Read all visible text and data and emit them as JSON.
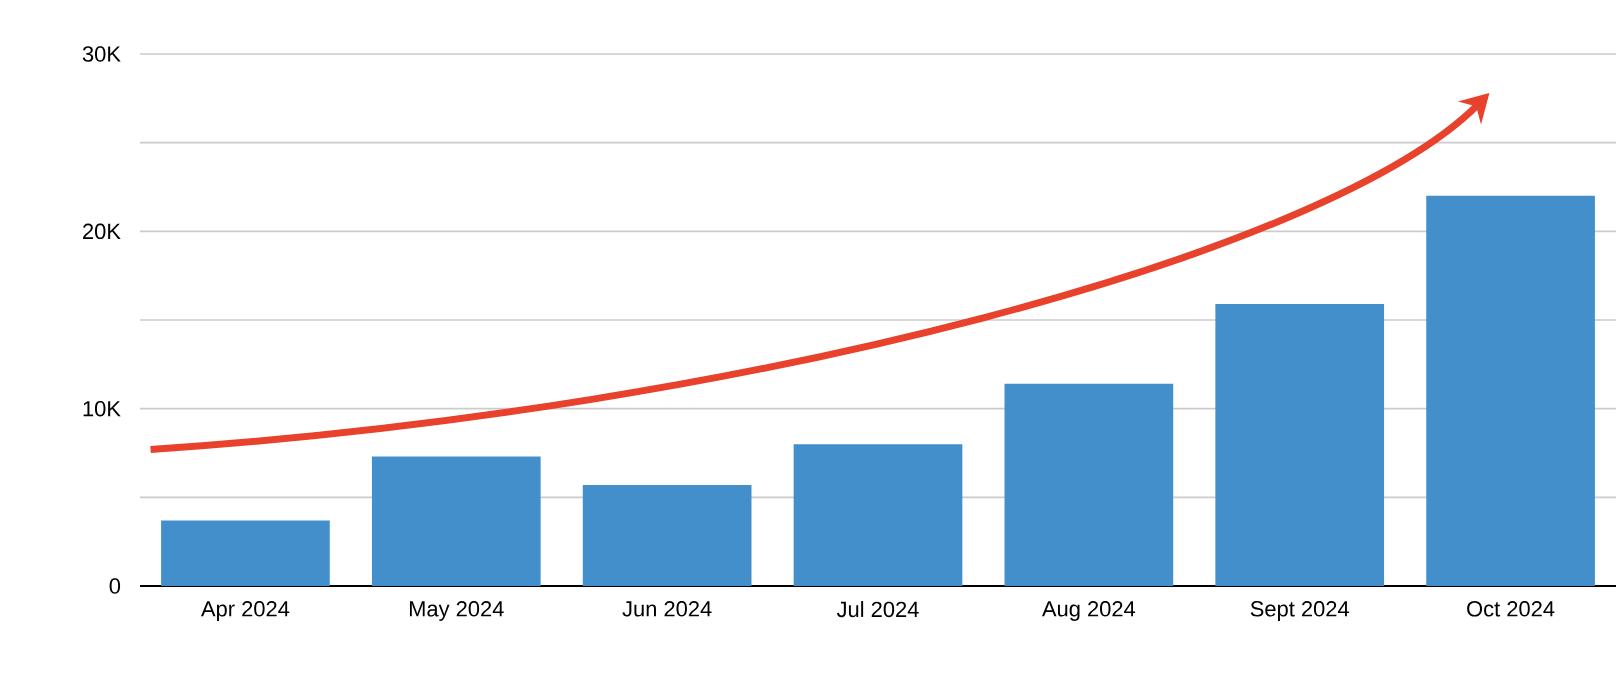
{
  "chart_data": {
    "type": "bar",
    "categories": [
      "Apr 2024",
      "May 2024",
      "Jun 2024",
      "Jul 2024",
      "Aug 2024",
      "Sept 2024",
      "Oct 2024"
    ],
    "values": [
      3700,
      7300,
      5700,
      8000,
      11400,
      15900,
      22000
    ],
    "color": "#428fcc",
    "ylim": [
      0,
      30000
    ],
    "yticks": [
      0,
      {
        "value": 5000,
        "label": null
      },
      {
        "value": 10000,
        "label": "10K"
      },
      {
        "value": 15000,
        "label": null
      },
      {
        "value": 20000,
        "label": "20K"
      },
      {
        "value": 25000,
        "label": null
      },
      {
        "value": 30000,
        "label": "30K"
      }
    ],
    "grid": "y"
  }
}
